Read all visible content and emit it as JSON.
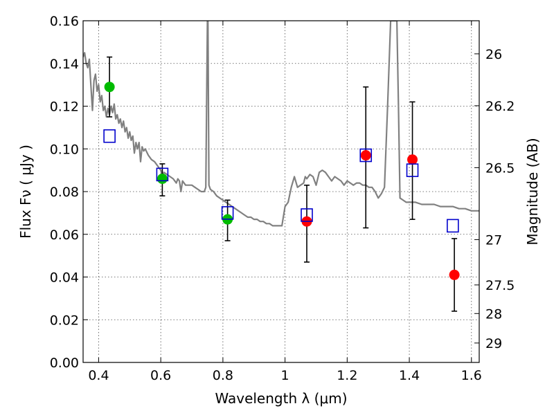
{
  "chart_data": {
    "type": "scatter",
    "title": "",
    "xlabel": "Wavelength  λ (μm)",
    "ylabel": "Flux  Fν  ( μJy )",
    "y2label": "Magnitude (AB)",
    "xlim": [
      0.35,
      1.625
    ],
    "ylim": [
      0.0,
      0.16
    ],
    "grid": true,
    "x_ticks": [
      0.4,
      0.6,
      0.8,
      1.0,
      1.2,
      1.4,
      1.6
    ],
    "x_tick_labels": [
      "0.4",
      "0.6",
      "0.8",
      "1",
      "1.2",
      "1.4",
      "1.6"
    ],
    "y_ticks": [
      0.0,
      0.02,
      0.04,
      0.06,
      0.08,
      0.1,
      0.12,
      0.14,
      0.16
    ],
    "y_tick_labels": [
      "0.00",
      "0.02",
      "0.04",
      "0.06",
      "0.08",
      "0.10",
      "0.12",
      "0.14",
      "0.16"
    ],
    "mag_ticks": [
      {
        "label": "26",
        "flux": 0.1445
      },
      {
        "label": "26.2",
        "flux": 0.1202
      },
      {
        "label": "26.5",
        "flux": 0.0912
      },
      {
        "label": "27",
        "flux": 0.0575
      },
      {
        "label": "27.5",
        "flux": 0.0363
      },
      {
        "label": "28",
        "flux": 0.0229
      },
      {
        "label": "29",
        "flux": 0.0091
      }
    ],
    "colors": {
      "spectrum": "#808080",
      "green_points": "#00bb00",
      "red_points": "#ff0000",
      "model_squares": "#0000cc",
      "errorbar": "#000000"
    },
    "series": [
      {
        "kind": "spectrum",
        "points": [
          [
            0.35,
            0.143
          ],
          [
            0.355,
            0.145
          ],
          [
            0.36,
            0.14
          ],
          [
            0.365,
            0.138
          ],
          [
            0.37,
            0.142
          ],
          [
            0.375,
            0.13
          ],
          [
            0.38,
            0.118
          ],
          [
            0.385,
            0.132
          ],
          [
            0.39,
            0.135
          ],
          [
            0.395,
            0.127
          ],
          [
            0.4,
            0.13
          ],
          [
            0.405,
            0.122
          ],
          [
            0.41,
            0.125
          ],
          [
            0.415,
            0.118
          ],
          [
            0.42,
            0.12
          ],
          [
            0.425,
            0.115
          ],
          [
            0.43,
            0.119
          ],
          [
            0.435,
            0.116
          ],
          [
            0.44,
            0.12
          ],
          [
            0.445,
            0.117
          ],
          [
            0.45,
            0.121
          ],
          [
            0.455,
            0.114
          ],
          [
            0.46,
            0.116
          ],
          [
            0.465,
            0.112
          ],
          [
            0.47,
            0.114
          ],
          [
            0.475,
            0.11
          ],
          [
            0.48,
            0.113
          ],
          [
            0.485,
            0.108
          ],
          [
            0.49,
            0.11
          ],
          [
            0.495,
            0.105
          ],
          [
            0.5,
            0.108
          ],
          [
            0.505,
            0.104
          ],
          [
            0.51,
            0.106
          ],
          [
            0.515,
            0.098
          ],
          [
            0.52,
            0.103
          ],
          [
            0.525,
            0.1
          ],
          [
            0.53,
            0.103
          ],
          [
            0.535,
            0.094
          ],
          [
            0.54,
            0.101
          ],
          [
            0.545,
            0.099
          ],
          [
            0.55,
            0.1
          ],
          [
            0.56,
            0.097
          ],
          [
            0.57,
            0.095
          ],
          [
            0.58,
            0.094
          ],
          [
            0.59,
            0.092
          ],
          [
            0.6,
            0.09
          ],
          [
            0.605,
            0.087
          ],
          [
            0.61,
            0.089
          ],
          [
            0.62,
            0.088
          ],
          [
            0.63,
            0.087
          ],
          [
            0.64,
            0.086
          ],
          [
            0.65,
            0.084
          ],
          [
            0.655,
            0.086
          ],
          [
            0.66,
            0.085
          ],
          [
            0.665,
            0.08
          ],
          [
            0.67,
            0.085
          ],
          [
            0.68,
            0.083
          ],
          [
            0.69,
            0.083
          ],
          [
            0.7,
            0.083
          ],
          [
            0.71,
            0.082
          ],
          [
            0.72,
            0.081
          ],
          [
            0.73,
            0.08
          ],
          [
            0.74,
            0.08
          ],
          [
            0.745,
            0.082
          ],
          [
            0.75,
            0.16
          ],
          [
            0.752,
            0.16
          ],
          [
            0.755,
            0.083
          ],
          [
            0.76,
            0.081
          ],
          [
            0.77,
            0.08
          ],
          [
            0.78,
            0.078
          ],
          [
            0.79,
            0.077
          ],
          [
            0.8,
            0.076
          ],
          [
            0.81,
            0.075
          ],
          [
            0.82,
            0.074
          ],
          [
            0.83,
            0.073
          ],
          [
            0.84,
            0.072
          ],
          [
            0.85,
            0.071
          ],
          [
            0.86,
            0.07
          ],
          [
            0.87,
            0.069
          ],
          [
            0.88,
            0.068
          ],
          [
            0.89,
            0.068
          ],
          [
            0.9,
            0.067
          ],
          [
            0.91,
            0.067
          ],
          [
            0.92,
            0.066
          ],
          [
            0.93,
            0.066
          ],
          [
            0.94,
            0.065
          ],
          [
            0.95,
            0.065
          ],
          [
            0.96,
            0.064
          ],
          [
            0.97,
            0.064
          ],
          [
            0.98,
            0.064
          ],
          [
            0.99,
            0.064
          ],
          [
            1.0,
            0.073
          ],
          [
            1.01,
            0.075
          ],
          [
            1.02,
            0.082
          ],
          [
            1.03,
            0.087
          ],
          [
            1.04,
            0.082
          ],
          [
            1.05,
            0.083
          ],
          [
            1.06,
            0.084
          ],
          [
            1.065,
            0.087
          ],
          [
            1.07,
            0.086
          ],
          [
            1.08,
            0.088
          ],
          [
            1.09,
            0.087
          ],
          [
            1.1,
            0.083
          ],
          [
            1.11,
            0.089
          ],
          [
            1.12,
            0.09
          ],
          [
            1.13,
            0.089
          ],
          [
            1.14,
            0.087
          ],
          [
            1.15,
            0.085
          ],
          [
            1.16,
            0.087
          ],
          [
            1.17,
            0.086
          ],
          [
            1.18,
            0.085
          ],
          [
            1.19,
            0.083
          ],
          [
            1.2,
            0.085
          ],
          [
            1.21,
            0.084
          ],
          [
            1.22,
            0.083
          ],
          [
            1.23,
            0.084
          ],
          [
            1.24,
            0.084
          ],
          [
            1.25,
            0.083
          ],
          [
            1.26,
            0.083
          ],
          [
            1.27,
            0.082
          ],
          [
            1.28,
            0.082
          ],
          [
            1.29,
            0.08
          ],
          [
            1.3,
            0.077
          ],
          [
            1.31,
            0.079
          ],
          [
            1.32,
            0.082
          ],
          [
            1.33,
            0.12
          ],
          [
            1.34,
            0.16
          ],
          [
            1.36,
            0.16
          ],
          [
            1.365,
            0.12
          ],
          [
            1.37,
            0.077
          ],
          [
            1.38,
            0.076
          ],
          [
            1.39,
            0.075
          ],
          [
            1.4,
            0.075
          ],
          [
            1.42,
            0.075
          ],
          [
            1.44,
            0.074
          ],
          [
            1.46,
            0.074
          ],
          [
            1.48,
            0.074
          ],
          [
            1.5,
            0.073
          ],
          [
            1.52,
            0.073
          ],
          [
            1.54,
            0.073
          ],
          [
            1.56,
            0.072
          ],
          [
            1.58,
            0.072
          ],
          [
            1.6,
            0.071
          ],
          [
            1.625,
            0.071
          ]
        ]
      },
      {
        "kind": "measured-green",
        "points": [
          {
            "x": 0.435,
            "y": 0.129,
            "ylo": 0.115,
            "yhi": 0.143
          },
          {
            "x": 0.605,
            "y": 0.086,
            "ylo": 0.078,
            "yhi": 0.093
          },
          {
            "x": 0.815,
            "y": 0.067,
            "ylo": 0.057,
            "yhi": 0.076
          }
        ]
      },
      {
        "kind": "measured-red",
        "points": [
          {
            "x": 1.07,
            "y": 0.066,
            "ylo": 0.047,
            "yhi": 0.083
          },
          {
            "x": 1.26,
            "y": 0.097,
            "ylo": 0.063,
            "yhi": 0.129
          },
          {
            "x": 1.41,
            "y": 0.095,
            "ylo": 0.067,
            "yhi": 0.122
          },
          {
            "x": 1.545,
            "y": 0.041,
            "ylo": 0.024,
            "yhi": 0.058
          }
        ]
      },
      {
        "kind": "model-squares",
        "points": [
          {
            "x": 0.435,
            "y": 0.106
          },
          {
            "x": 0.605,
            "y": 0.088
          },
          {
            "x": 0.815,
            "y": 0.07
          },
          {
            "x": 1.07,
            "y": 0.069
          },
          {
            "x": 1.26,
            "y": 0.097
          },
          {
            "x": 1.41,
            "y": 0.09
          },
          {
            "x": 1.54,
            "y": 0.064
          }
        ]
      }
    ]
  }
}
